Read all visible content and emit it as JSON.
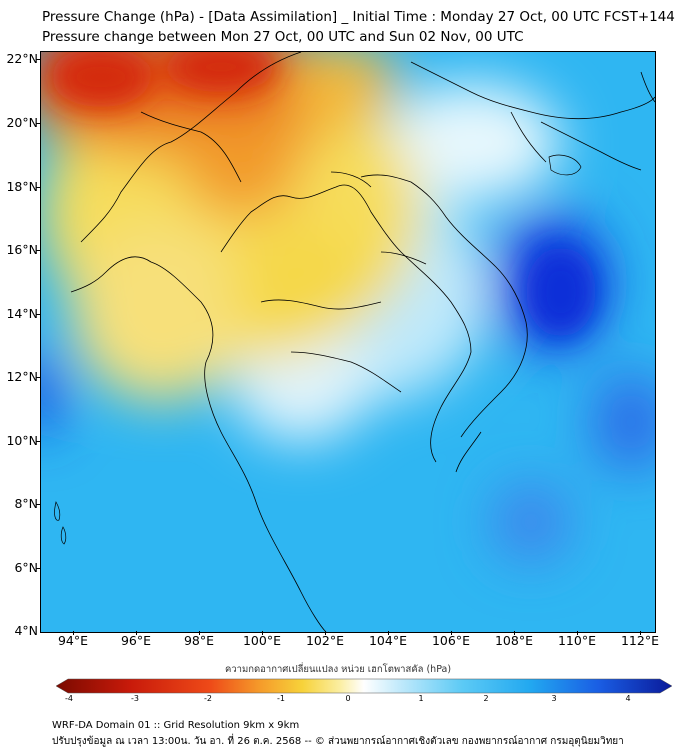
{
  "title": {
    "line1": "Pressure Change (hPa) - [Data Assimilation] _ Initial Time : Monday 27 Oct, 00 UTC FCST+144",
    "line2": "Pressure change between Mon 27 Oct, 00 UTC and Sun 02 Nov, 00 UTC"
  },
  "map": {
    "lat_labels": [
      "22°N",
      "20°N",
      "18°N",
      "16°N",
      "14°N",
      "12°N",
      "10°N",
      "8°N",
      "6°N",
      "4°N"
    ],
    "lon_labels": [
      "94°E",
      "96°E",
      "98°E",
      "100°E",
      "102°E",
      "104°E",
      "106°E",
      "108°E",
      "110°E",
      "112°E"
    ],
    "lat_range": [
      4,
      22.2
    ],
    "lon_range": [
      93,
      112.5
    ],
    "colors": {
      "strong_rise": "#0a2fd8",
      "rise": "#1ea0f0",
      "neutral": "#ffffff",
      "fall": "#f5d43a",
      "strong_fall": "#d42a10",
      "border_line": "#000000"
    }
  },
  "colorbar": {
    "title": "ความกดอากาศเปลี่ยนแปลง หน่วย เฮกโตพาสคัล (hPa)",
    "tick_labels": [
      "-4",
      "-3",
      "-2",
      "-1",
      "0",
      "1",
      "2",
      "3",
      "4"
    ],
    "range": [
      -4,
      4
    ]
  },
  "footer": {
    "line1": "WRF-DA Domain 01 :: Grid Resolution 9km x 9km",
    "line2": "ปรับปรุงข้อมูล ณ เวลา 13:00น. วัน อา. ที่ 26 ต.ค. 2568 -- © ส่วนพยากรณ์อากาศเชิงตัวเลข กองพยากรณ์อากาศ กรมอุตุนิยมวิทยา"
  }
}
